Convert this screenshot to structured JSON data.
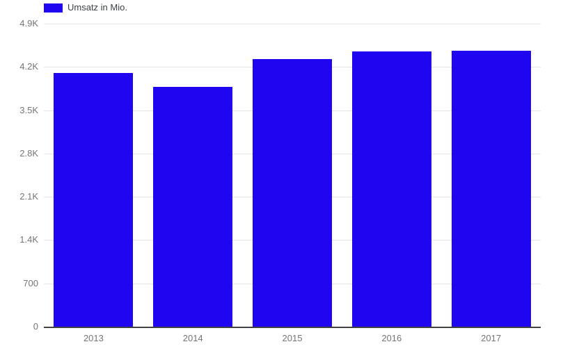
{
  "chart_data": {
    "type": "bar",
    "title": "",
    "categories": [
      "2013",
      "2014",
      "2015",
      "2016",
      "2017"
    ],
    "series": [
      {
        "name": "Umsatz in Mio.",
        "color": "#2005F0",
        "values": [
          4105,
          3880,
          4330,
          4450,
          4460
        ]
      }
    ],
    "ylim": [
      0,
      4900
    ],
    "yticks": [
      {
        "value": 0,
        "label": "0"
      },
      {
        "value": 700,
        "label": "700"
      },
      {
        "value": 1400,
        "label": "1.4K"
      },
      {
        "value": 2100,
        "label": "2.1K"
      },
      {
        "value": 2800,
        "label": "2.8K"
      },
      {
        "value": 3500,
        "label": "3.5K"
      },
      {
        "value": 4200,
        "label": "4.2K"
      },
      {
        "value": 4900,
        "label": "4.9K"
      }
    ],
    "grid": true,
    "legend_position": "top-left",
    "colors": {
      "bar": "#2005F0",
      "gridline": "#e6e6e6",
      "axis_line": "#424242",
      "tick_label": "#757575",
      "legend_text": "#3c4043",
      "background": "#ffffff"
    }
  }
}
